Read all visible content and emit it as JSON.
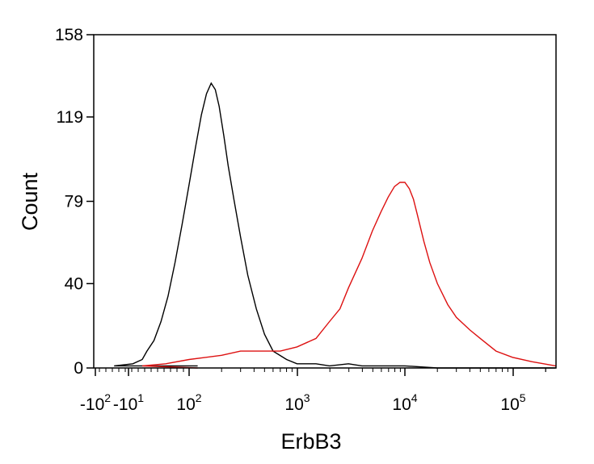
{
  "chart_data": {
    "type": "line",
    "title": "",
    "xlabel": "ErbB3",
    "ylabel": "Count",
    "x_scale": "biexponential",
    "xlim": [
      -150,
      260000
    ],
    "ylim": [
      0,
      158
    ],
    "x_ticks": [
      {
        "value": -100,
        "base": "-10",
        "exp": "2"
      },
      {
        "value": -10,
        "base": "-10",
        "exp": "1"
      },
      {
        "value": 100,
        "base": "10",
        "exp": "2"
      },
      {
        "value": 1000,
        "base": "10",
        "exp": "3"
      },
      {
        "value": 10000,
        "base": "10",
        "exp": "4"
      },
      {
        "value": 100000,
        "base": "10",
        "exp": "5"
      }
    ],
    "y_ticks": [
      {
        "value": 0,
        "label": "0"
      },
      {
        "value": 40,
        "label": "40"
      },
      {
        "value": 79,
        "label": "79"
      },
      {
        "value": 119,
        "label": "119"
      },
      {
        "value": 158,
        "label": "158"
      }
    ],
    "grid": false,
    "legend": "none",
    "series": [
      {
        "color": "#000000",
        "x": [
          -120,
          -60,
          -20,
          0,
          10,
          25,
          40,
          55,
          70,
          85,
          100,
          115,
          130,
          145,
          160,
          175,
          190,
          210,
          230,
          260,
          300,
          350,
          420,
          500,
          600,
          800,
          1000,
          1500,
          2000,
          3000,
          4000,
          6000,
          10000,
          20000,
          50000,
          100000,
          250000
        ],
        "y": [
          1,
          1,
          2,
          4,
          8,
          13,
          22,
          34,
          50,
          68,
          87,
          105,
          120,
          130,
          135,
          132,
          124,
          110,
          96,
          80,
          62,
          44,
          28,
          16,
          8,
          4,
          2,
          2,
          1,
          2,
          1,
          1,
          1,
          0,
          0,
          0,
          0
        ]
      },
      {
        "color": "#dd1111",
        "x": [
          -120,
          0,
          50,
          100,
          200,
          300,
          500,
          700,
          1000,
          1500,
          2000,
          2500,
          3000,
          4000,
          5000,
          6000,
          7000,
          8000,
          9000,
          10000,
          11000,
          12000,
          13000,
          15000,
          17000,
          20000,
          25000,
          30000,
          40000,
          50000,
          70000,
          100000,
          150000,
          250000
        ],
        "y": [
          0,
          1,
          2,
          4,
          6,
          8,
          8,
          8,
          10,
          14,
          22,
          28,
          38,
          52,
          65,
          74,
          81,
          86,
          88,
          88,
          85,
          80,
          73,
          60,
          50,
          40,
          30,
          24,
          18,
          14,
          8,
          5,
          3,
          1
        ]
      }
    ]
  }
}
